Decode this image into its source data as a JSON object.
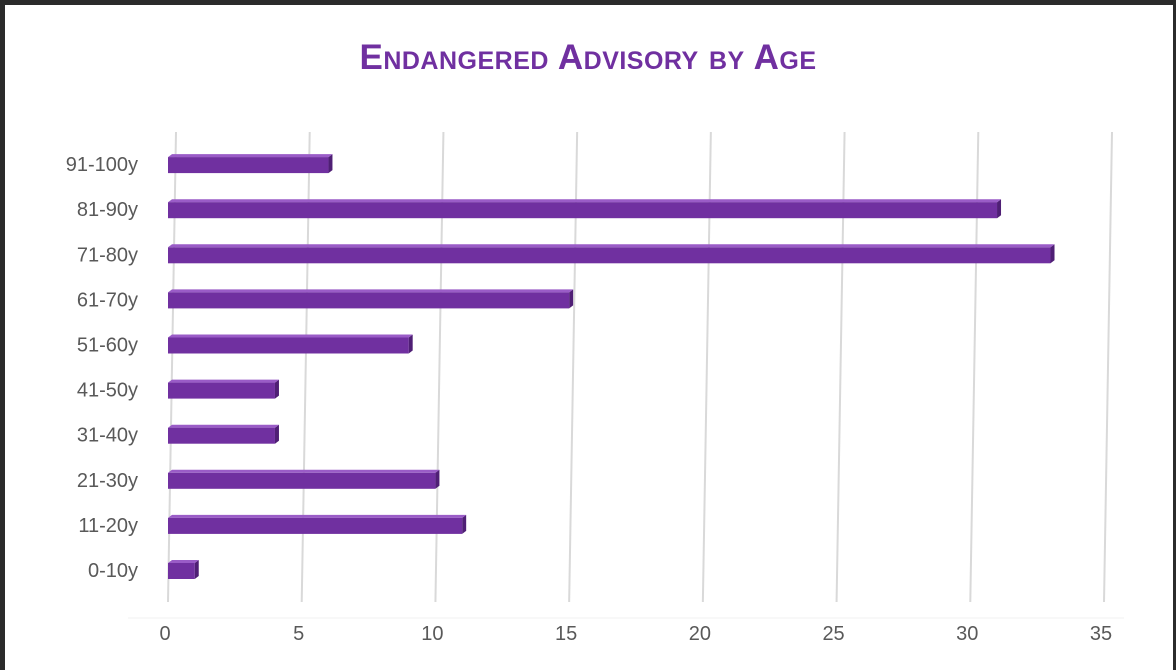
{
  "chart_data": {
    "type": "bar",
    "orientation": "horizontal",
    "title": "Endangered Advisory by Age",
    "categories": [
      "0-10y",
      "11-20y",
      "21-30y",
      "31-40y",
      "41-50y",
      "51-60y",
      "61-70y",
      "71-80y",
      "81-90y",
      "91-100y"
    ],
    "values": [
      1,
      11,
      10,
      4,
      4,
      9,
      15,
      33,
      31,
      6
    ],
    "xlabel": "",
    "ylabel": "",
    "xlim": [
      0,
      35
    ],
    "xticks": [
      "0",
      "5",
      "10",
      "15",
      "20",
      "25",
      "30",
      "35"
    ],
    "grid": "vertical",
    "legend": "none",
    "colors": {
      "bar": "#7030a0",
      "bar_shade": "#4f1f75",
      "bar_top": "#9a5cc7",
      "title": "#7030a0",
      "grid": "#d9d9d9",
      "tick": "#595959"
    }
  }
}
